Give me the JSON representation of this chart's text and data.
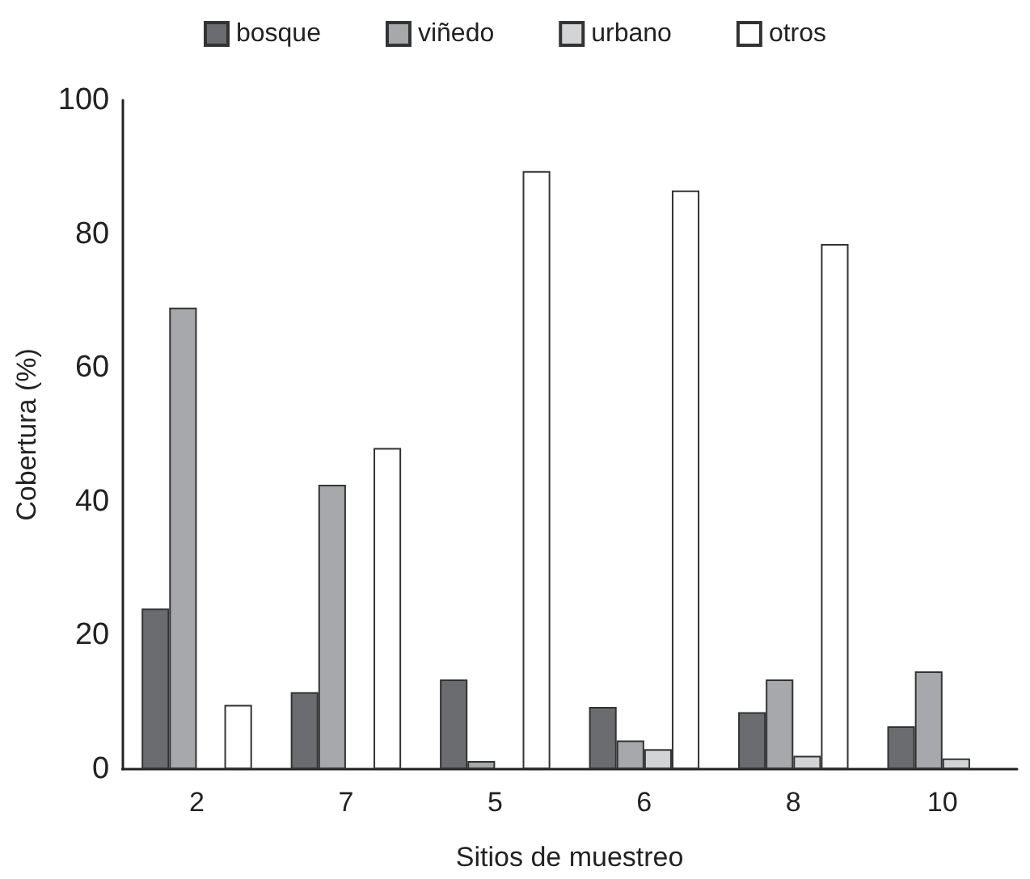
{
  "chart_data": {
    "type": "bar",
    "xlabel": "Sitios de muestreo",
    "ylabel": "Cobertura (%)",
    "categories": [
      "2",
      "7",
      "5",
      "6",
      "8",
      "10"
    ],
    "series": [
      {
        "name": "bosque",
        "color": "#6b6c70",
        "values": [
          24,
          11.5,
          13.4,
          9.3,
          8.5,
          6.4
        ]
      },
      {
        "name": "viñedo",
        "color": "#a7a8ac",
        "values": [
          69,
          42.5,
          1.2,
          4.3,
          13.4,
          14.6
        ]
      },
      {
        "name": "urbano",
        "color": "#d3d4d6",
        "values": [
          null,
          null,
          null,
          3,
          2,
          1.6
        ]
      },
      {
        "name": "otros",
        "color": "#ffffff",
        "values": [
          9.6,
          48,
          89.4,
          86.5,
          78.5,
          null
        ]
      }
    ],
    "ylim": [
      0,
      100
    ],
    "yticks": [
      0,
      20,
      40,
      60,
      80,
      100
    ],
    "grid": false,
    "legend": "top"
  }
}
